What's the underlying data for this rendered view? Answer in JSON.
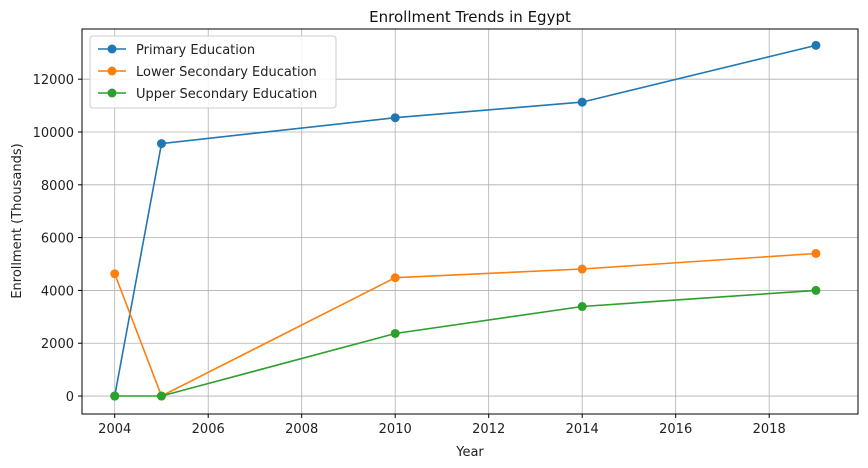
{
  "chart_data": {
    "type": "line",
    "title": "Enrollment Trends in Egypt",
    "xlabel": "Year",
    "ylabel": "Enrollment (Thousands)",
    "xlim": [
      2003.3,
      2019.9
    ],
    "ylim": [
      -680,
      13900
    ],
    "xticks": [
      2004,
      2006,
      2008,
      2010,
      2012,
      2014,
      2016,
      2018
    ],
    "yticks": [
      0,
      2000,
      4000,
      6000,
      8000,
      10000,
      12000
    ],
    "grid": true,
    "legend_position": "top-left",
    "series": [
      {
        "name": "Primary Education",
        "color": "#1f77b4",
        "points": [
          [
            2004,
            0
          ],
          [
            2005,
            9560
          ],
          [
            2010,
            10540
          ],
          [
            2014,
            11130
          ],
          [
            2019,
            13280
          ]
        ]
      },
      {
        "name": "Lower Secondary Education",
        "color": "#ff7f0e",
        "points": [
          [
            2004,
            4630
          ],
          [
            2005,
            0
          ],
          [
            2010,
            4480
          ],
          [
            2014,
            4810
          ],
          [
            2019,
            5400
          ]
        ]
      },
      {
        "name": "Upper Secondary Education",
        "color": "#2ca02c",
        "points": [
          [
            2004,
            0
          ],
          [
            2005,
            0
          ],
          [
            2010,
            2370
          ],
          [
            2014,
            3390
          ],
          [
            2019,
            4000
          ]
        ]
      }
    ]
  }
}
